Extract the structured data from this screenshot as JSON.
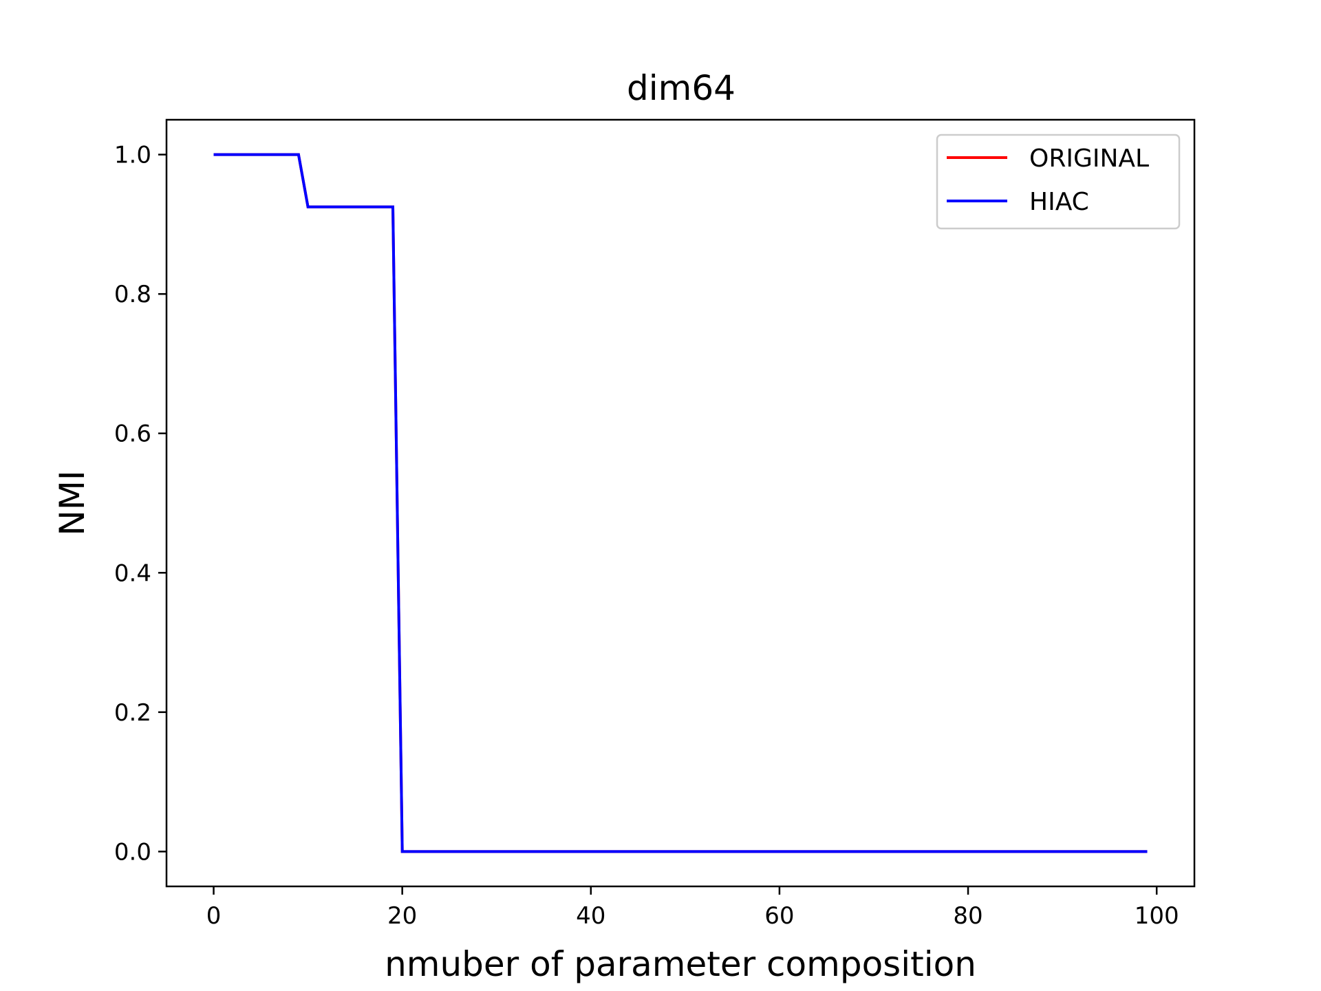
{
  "chart_data": {
    "type": "line",
    "title": "dim64",
    "xlabel": "nmuber of parameter composition",
    "ylabel": "NMI",
    "xlim": [
      -5,
      104
    ],
    "ylim": [
      -0.05,
      1.05
    ],
    "xticks": [
      0,
      20,
      40,
      60,
      80,
      100
    ],
    "yticks": [
      0.0,
      0.2,
      0.4,
      0.6,
      0.8,
      1.0
    ],
    "xtick_labels": [
      "0",
      "20",
      "40",
      "60",
      "80",
      "100"
    ],
    "ytick_labels": [
      "0.0",
      "0.2",
      "0.4",
      "0.6",
      "0.8",
      "1.0"
    ],
    "grid": false,
    "legend_position": "top-right",
    "series": [
      {
        "name": "ORIGINAL",
        "color": "#ff0000",
        "x": [
          0,
          9,
          10,
          19,
          20,
          99
        ],
        "y": [
          1.0,
          1.0,
          0.925,
          0.925,
          0.0,
          0.0
        ]
      },
      {
        "name": "HIAC",
        "color": "#0000ff",
        "x": [
          0,
          9,
          10,
          19,
          20,
          99
        ],
        "y": [
          1.0,
          1.0,
          0.925,
          0.925,
          0.0,
          0.0
        ]
      }
    ]
  }
}
